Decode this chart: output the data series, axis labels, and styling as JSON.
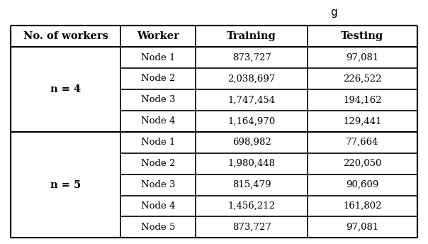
{
  "headers": [
    "No. of workers",
    "Worker",
    "Training",
    "Testing"
  ],
  "n4_rows": [
    [
      "Node 1",
      "873,727",
      "97,081"
    ],
    [
      "Node 2",
      "2,038,697",
      "226,522"
    ],
    [
      "Node 3",
      "1,747,454",
      "194,162"
    ],
    [
      "Node 4",
      "1,164,970",
      "129,441"
    ]
  ],
  "n5_rows": [
    [
      "Node 1",
      "698,982",
      "77,664"
    ],
    [
      "Node 2",
      "1,980,448",
      "220,050"
    ],
    [
      "Node 3",
      "815,479",
      "90,609"
    ],
    [
      "Node 4",
      "1,456,212",
      "161,802"
    ],
    [
      "Node 5",
      "873,727",
      "97,081"
    ]
  ],
  "n4_label": "n = 4",
  "n5_label": "n = 5",
  "background_color": "#ffffff",
  "header_fontsize": 10.5,
  "cell_fontsize": 9.5,
  "label_fontsize": 10.5,
  "line_color": "#000000",
  "line_width": 1.2,
  "title_text": "g"
}
